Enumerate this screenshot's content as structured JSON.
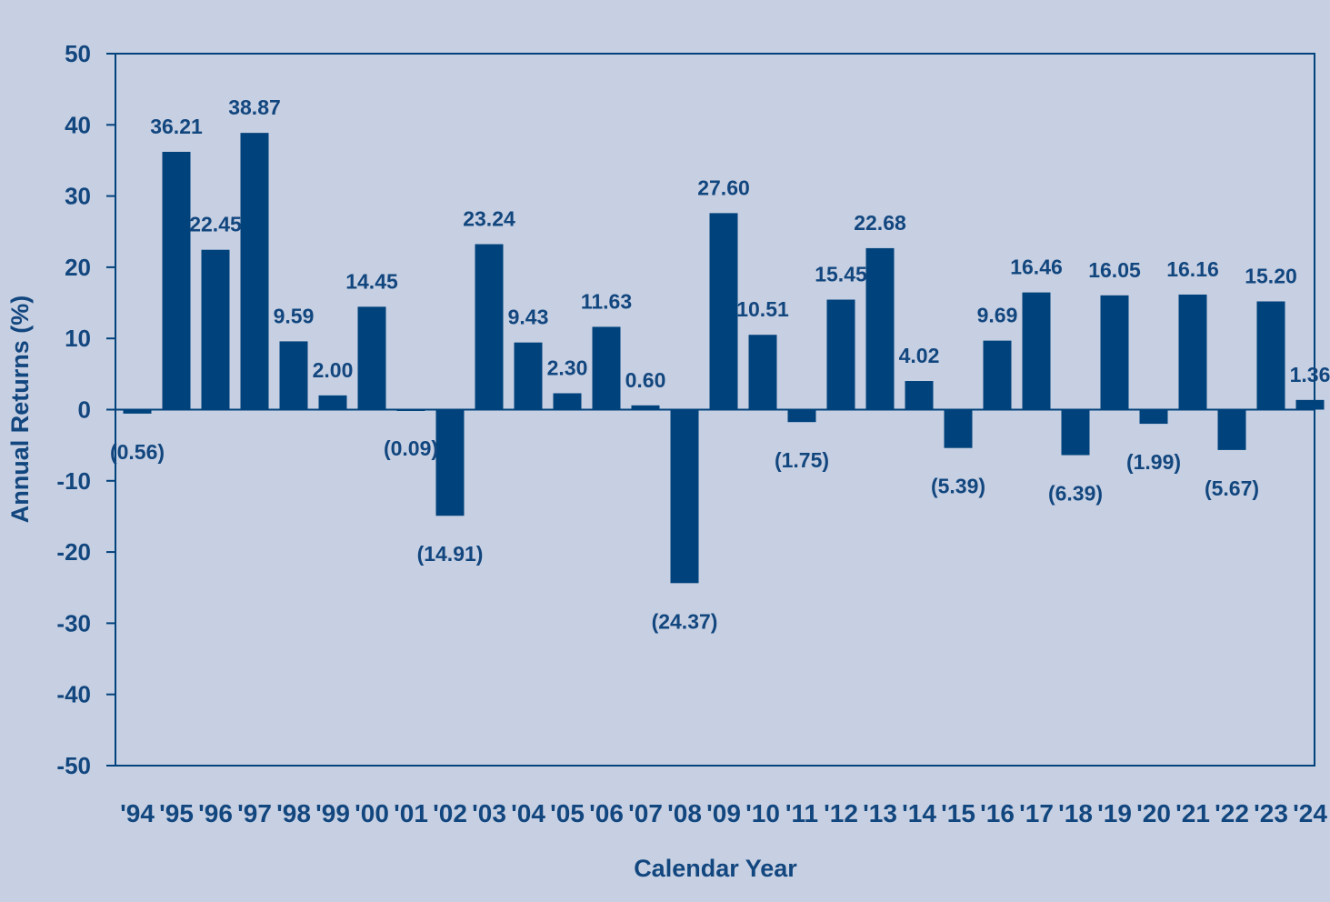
{
  "colors": {
    "background": "#c7d0e3",
    "bar": "#00427b",
    "axis": "#00427b",
    "text": "#12467e"
  },
  "chart_data": {
    "type": "bar",
    "title": "",
    "xlabel": "Calendar Year",
    "ylabel": "Annual Returns (%)",
    "ylim": [
      -50,
      50
    ],
    "yticks": [
      "50",
      "40",
      "30",
      "20",
      "10",
      "0",
      "-10",
      "-20",
      "-30",
      "-40",
      "-50"
    ],
    "grid": false,
    "categories": [
      "'94",
      "'95",
      "'96",
      "'97",
      "'98",
      "'99",
      "'00",
      "'01",
      "'02",
      "'03",
      "'04",
      "'05",
      "'06",
      "'07",
      "'08",
      "'09",
      "'10",
      "'11",
      "'12",
      "'13",
      "'14",
      "'15",
      "'16",
      "'17",
      "'18",
      "'19",
      "'20",
      "'21",
      "'22",
      "'23",
      "'24"
    ],
    "values": [
      -0.56,
      36.21,
      22.45,
      38.87,
      9.59,
      2.0,
      14.45,
      -0.09,
      -14.91,
      23.24,
      9.43,
      2.3,
      11.63,
      0.6,
      -24.37,
      27.6,
      10.51,
      -1.75,
      15.45,
      22.68,
      4.02,
      -5.39,
      9.69,
      16.46,
      -6.39,
      16.05,
      -1.99,
      16.16,
      -5.67,
      15.2,
      1.36
    ],
    "labels": [
      "(0.56)",
      "36.21",
      "22.45",
      "38.87",
      "9.59",
      "2.00",
      "14.45",
      "(0.09)",
      "(14.91)",
      "23.24",
      "9.43",
      "2.30",
      "11.63",
      "0.60",
      "(24.37)",
      "27.60",
      "10.51",
      "(1.75)",
      "15.45",
      "22.68",
      "4.02",
      "(5.39)",
      "9.69",
      "16.46",
      "(6.39)",
      "16.05",
      "(1.99)",
      "16.16",
      "(5.67)",
      "15.20",
      "1.36"
    ]
  }
}
